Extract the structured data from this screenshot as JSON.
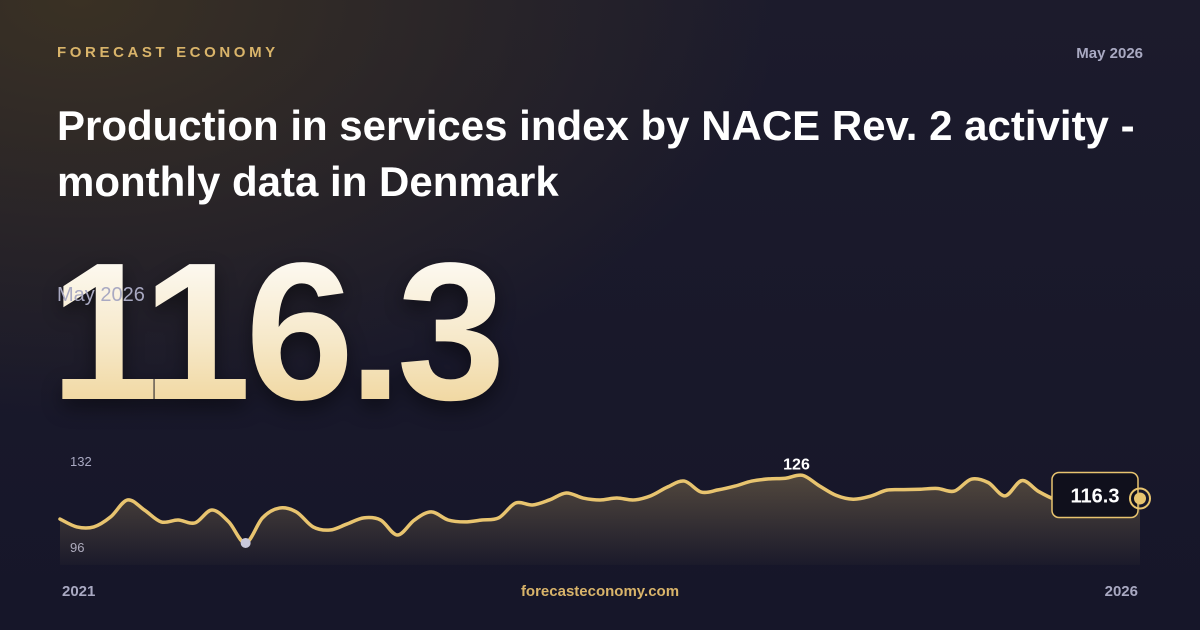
{
  "header": {
    "brand": "FORECAST ECONOMY",
    "date": "May 2026"
  },
  "title": "Production in services index by NACE Rev. 2 activity - monthly data in Denmark",
  "headline": {
    "period": "May 2026"
  },
  "chart_data": {
    "type": "line",
    "color": "#e8c46f",
    "values": [
      107.7,
      104.4,
      104.4,
      108.6,
      115.7,
      111.5,
      106.5,
      107.3,
      106.1,
      111.5,
      106.5,
      97.7,
      108.2,
      112.3,
      110.7,
      104.4,
      103.1,
      105.6,
      108.2,
      107.3,
      101.0,
      107.3,
      110.7,
      107.3,
      106.5,
      107.3,
      108.2,
      114.4,
      113.6,
      115.7,
      118.6,
      116.5,
      115.7,
      116.5,
      115.7,
      117.4,
      121.1,
      123.6,
      119.0,
      119.9,
      121.5,
      123.6,
      124.5,
      124.8,
      126,
      121.6,
      117.6,
      116.0,
      117.2,
      119.8,
      120.0,
      120.2,
      120.5,
      119.4,
      124.4,
      123.0,
      117.4,
      123.8,
      119.2,
      115.8,
      114.5,
      115.5,
      116.8,
      116.0,
      116.3
    ],
    "ylim": [
      96,
      132
    ],
    "yticks": [
      96,
      132
    ],
    "grid": false,
    "x_labels": [
      "2021",
      "2026"
    ]
  },
  "footer": {
    "site": "forecasteconomy.com"
  }
}
